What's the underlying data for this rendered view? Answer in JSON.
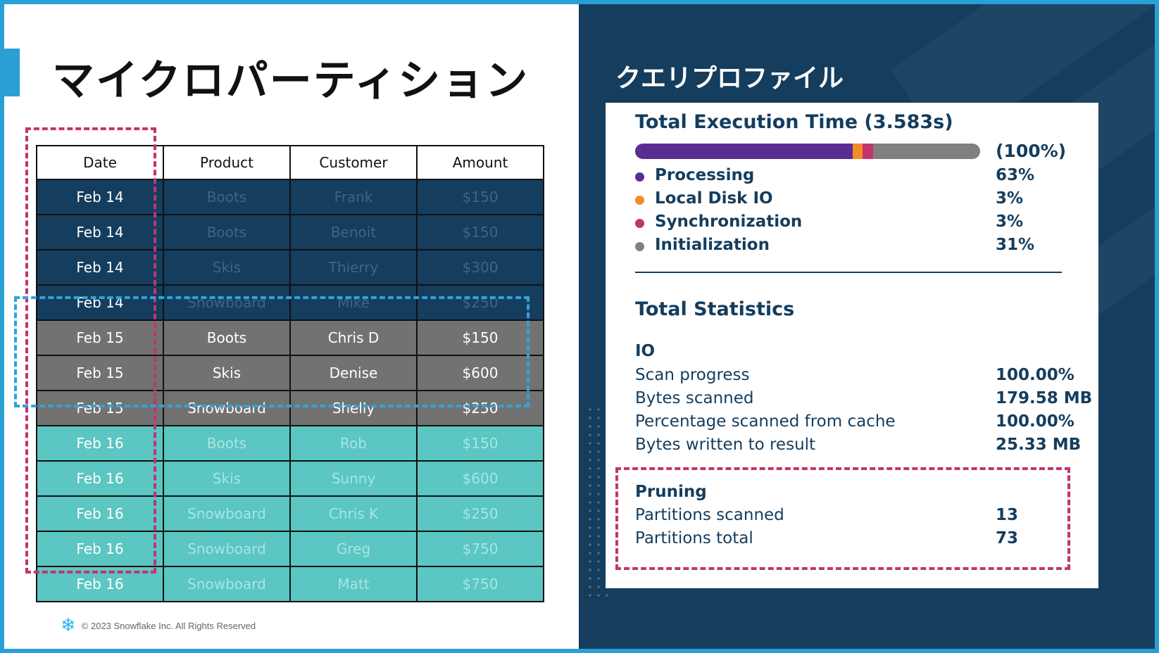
{
  "slide": {
    "title": "マイクロパーティション",
    "footer": "© 2023 Snowflake Inc. All Rights Reserved",
    "footer_icon": "snowflake-icon"
  },
  "table": {
    "headers": [
      "Date",
      "Product",
      "Customer",
      "Amount"
    ],
    "rows": [
      {
        "group": "g14",
        "cells": [
          "Feb 14",
          "Boots",
          "Frank",
          "$150"
        ]
      },
      {
        "group": "g14",
        "cells": [
          "Feb 14",
          "Boots",
          "Benoit",
          "$150"
        ]
      },
      {
        "group": "g14",
        "cells": [
          "Feb 14",
          "Skis",
          "Thierry",
          "$300"
        ]
      },
      {
        "group": "g14",
        "cells": [
          "Feb 14",
          "Snowboard",
          "Mike",
          "$250"
        ]
      },
      {
        "group": "g15",
        "cells": [
          "Feb 15",
          "Boots",
          "Chris D",
          "$150"
        ]
      },
      {
        "group": "g15",
        "cells": [
          "Feb 15",
          "Skis",
          "Denise",
          "$600"
        ]
      },
      {
        "group": "g15",
        "cells": [
          "Feb 15",
          "Snowboard",
          "Shelly",
          "$250"
        ]
      },
      {
        "group": "g16",
        "cells": [
          "Feb 16",
          "Boots",
          "Rob",
          "$150"
        ]
      },
      {
        "group": "g16",
        "cells": [
          "Feb 16",
          "Skis",
          "Sunny",
          "$600"
        ]
      },
      {
        "group": "g16",
        "cells": [
          "Feb 16",
          "Snowboard",
          "Chris K",
          "$250"
        ]
      },
      {
        "group": "g16",
        "cells": [
          "Feb 16",
          "Snowboard",
          "Greg",
          "$750"
        ]
      },
      {
        "group": "g16",
        "cells": [
          "Feb 16",
          "Snowboard",
          "Matt",
          "$750"
        ]
      }
    ]
  },
  "colors": {
    "navy": "#143d5e",
    "gray": "#727272",
    "teal": "#5bc6c2",
    "highlight_pink": "#c2346f",
    "highlight_blue": "#2fa4d6",
    "accent_blue": "#2a9fd6"
  },
  "profile": {
    "title": "クエリプロファイル",
    "execution_title": "Total Execution Time (3.583s)",
    "bar_total_label": "(100%)",
    "breakdown": [
      {
        "label": "Processing",
        "percent": "63%",
        "share": 63,
        "color": "#5b2d91"
      },
      {
        "label": "Local Disk IO",
        "percent": "3%",
        "share": 3,
        "color": "#f28c28"
      },
      {
        "label": "Synchronization",
        "percent": "3%",
        "share": 3,
        "color": "#c2346f"
      },
      {
        "label": "Initialization",
        "percent": "31%",
        "share": 31,
        "color": "#808080"
      }
    ],
    "stats_title": "Total Statistics",
    "io_title": "IO",
    "io": [
      {
        "label": "Scan progress",
        "value": "100.00%"
      },
      {
        "label": "Bytes scanned",
        "value": "179.58 MB"
      },
      {
        "label": "Percentage scanned from cache",
        "value": "100.00%"
      },
      {
        "label": "Bytes written to result",
        "value": "25.33 MB"
      }
    ],
    "pruning_title": "Pruning",
    "pruning": [
      {
        "label": "Partitions scanned",
        "value": "13"
      },
      {
        "label": "Partitions total",
        "value": "73"
      }
    ]
  }
}
